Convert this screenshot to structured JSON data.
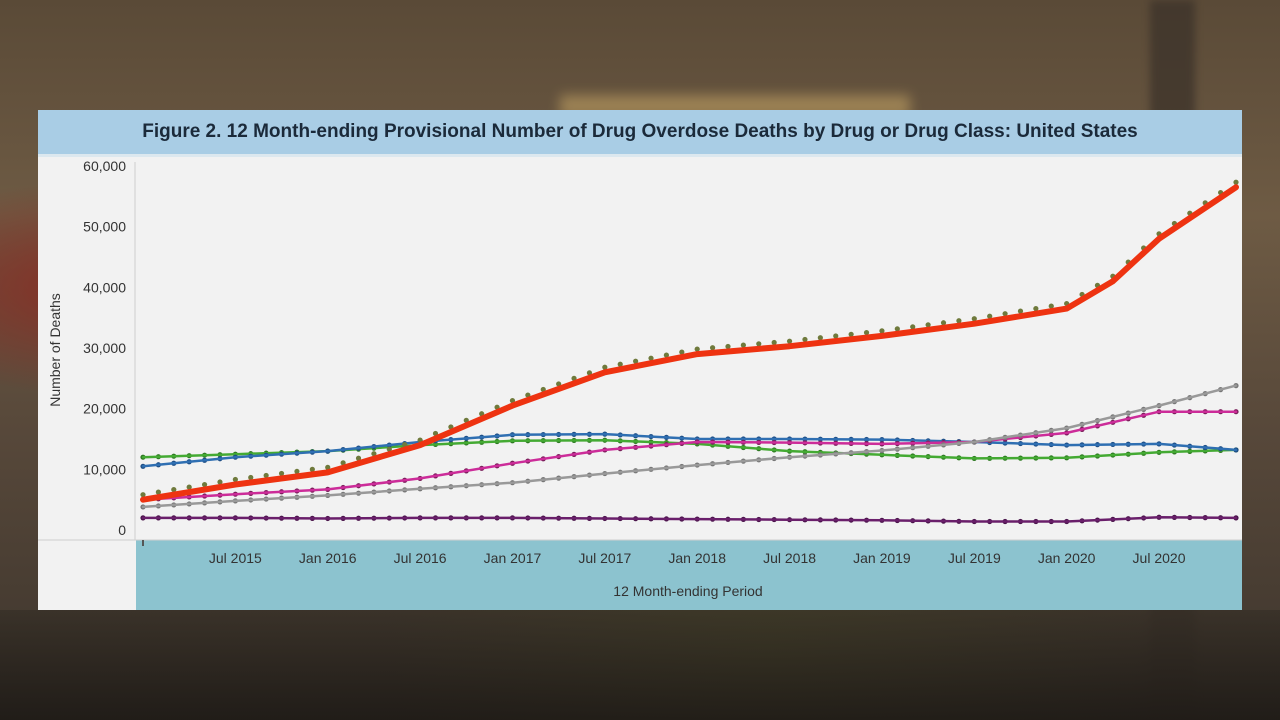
{
  "title": "Figure 2. 12 Month-ending Provisional Number of Drug Overdose Deaths by Drug or Drug Class: United States",
  "colors": {
    "title_bar": "#a9cde5",
    "plot_bg": "#f2f2f2",
    "xaxis_band": "#8cc3cf"
  },
  "chart_data": {
    "type": "line",
    "title": "Figure 2. 12 Month-ending Provisional Number of Drug Overdose Deaths by Drug or Drug Class: United States",
    "xlabel": "12 Month-ending Period",
    "ylabel": "Number of Deaths",
    "ylim": [
      0,
      60000
    ],
    "grid": false,
    "legend": "none",
    "x_start": "Jan 2015",
    "x_end": "Dec 2020",
    "x_tick_labels": [
      "Jul 2015",
      "Jan 2016",
      "Jul 2016",
      "Jan 2017",
      "Jul 2017",
      "Jan 2018",
      "Jul 2018",
      "Jan 2019",
      "Jul 2019",
      "Jan 2020",
      "Jul 2020"
    ],
    "y_tick_labels": [
      "0",
      "10,000",
      "20,000",
      "30,000",
      "40,000",
      "50,000",
      "60,000"
    ],
    "y_ticks": [
      0,
      10000,
      20000,
      30000,
      40000,
      50000,
      60000
    ],
    "series": [
      {
        "color": "#ee3311",
        "marker_color": "#6f7a3c",
        "line_width": 6,
        "points": [
          [
            "Jan 2015",
            5000
          ],
          [
            "Jul 2015",
            7500
          ],
          [
            "Jan 2016",
            9500
          ],
          [
            "Jul 2016",
            14000
          ],
          [
            "Jan 2017",
            20500
          ],
          [
            "Jul 2017",
            26000
          ],
          [
            "Jan 2018",
            29000
          ],
          [
            "Jul 2018",
            30300
          ],
          [
            "Jan 2019",
            32000
          ],
          [
            "Jul 2019",
            34000
          ],
          [
            "Jan 2020",
            36500
          ],
          [
            "Apr 2020",
            41000
          ],
          [
            "Jul 2020",
            48000
          ],
          [
            "Dec 2020",
            56500
          ]
        ]
      },
      {
        "color": "#999999",
        "marker_color": "#777777",
        "line_width": 2.5,
        "points": [
          [
            "Jan 2015",
            3800
          ],
          [
            "Jul 2015",
            4800
          ],
          [
            "Jan 2016",
            5700
          ],
          [
            "Jul 2016",
            6800
          ],
          [
            "Jan 2017",
            7800
          ],
          [
            "Jul 2017",
            9300
          ],
          [
            "Jan 2018",
            10700
          ],
          [
            "Jul 2018",
            12000
          ],
          [
            "Jan 2019",
            13100
          ],
          [
            "Jul 2019",
            14500
          ],
          [
            "Jan 2020",
            16800
          ],
          [
            "Jul 2020",
            20500
          ],
          [
            "Dec 2020",
            23800
          ]
        ]
      },
      {
        "color": "#cc2c99",
        "marker_color": "#7a1f5a",
        "line_width": 2.5,
        "points": [
          [
            "Jan 2015",
            5000
          ],
          [
            "Jul 2015",
            5900
          ],
          [
            "Jan 2016",
            6700
          ],
          [
            "Jul 2016",
            8500
          ],
          [
            "Jan 2017",
            11000
          ],
          [
            "Jul 2017",
            13200
          ],
          [
            "Jan 2018",
            14500
          ],
          [
            "Jul 2018",
            14400
          ],
          [
            "Jan 2019",
            14200
          ],
          [
            "Jul 2019",
            14500
          ],
          [
            "Jan 2020",
            16000
          ],
          [
            "Jul 2020",
            19500
          ],
          [
            "Dec 2020",
            19500
          ]
        ]
      },
      {
        "color": "#2f6fb2",
        "marker_color": "#1f4f86",
        "line_width": 2.5,
        "points": [
          [
            "Jan 2015",
            10500
          ],
          [
            "Jul 2015",
            12000
          ],
          [
            "Jan 2016",
            13000
          ],
          [
            "Jul 2016",
            14500
          ],
          [
            "Jan 2017",
            15700
          ],
          [
            "Jul 2017",
            15800
          ],
          [
            "Jan 2018",
            15000
          ],
          [
            "Jul 2018",
            15000
          ],
          [
            "Jan 2019",
            14900
          ],
          [
            "Jul 2019",
            14500
          ],
          [
            "Jan 2020",
            14000
          ],
          [
            "Jul 2020",
            14200
          ],
          [
            "Dec 2020",
            13200
          ]
        ]
      },
      {
        "color": "#44aa33",
        "marker_color": "#2f7a23",
        "line_width": 2.5,
        "points": [
          [
            "Jan 2015",
            12000
          ],
          [
            "Jul 2015",
            12500
          ],
          [
            "Jan 2016",
            13000
          ],
          [
            "Jul 2016",
            14000
          ],
          [
            "Jan 2017",
            14700
          ],
          [
            "Jul 2017",
            14800
          ],
          [
            "Jan 2018",
            14200
          ],
          [
            "Jul 2018",
            13000
          ],
          [
            "Jan 2019",
            12400
          ],
          [
            "Jul 2019",
            11800
          ],
          [
            "Jan 2020",
            11900
          ],
          [
            "Jul 2020",
            12800
          ],
          [
            "Dec 2020",
            13200
          ]
        ]
      },
      {
        "color": "#6a1f6b",
        "marker_color": "#4a154b",
        "line_width": 2.5,
        "points": [
          [
            "Jan 2015",
            2000
          ],
          [
            "Jul 2015",
            2000
          ],
          [
            "Jan 2016",
            1900
          ],
          [
            "Jul 2016",
            2000
          ],
          [
            "Jan 2017",
            2000
          ],
          [
            "Jul 2017",
            1900
          ],
          [
            "Jan 2018",
            1800
          ],
          [
            "Jul 2018",
            1700
          ],
          [
            "Jan 2019",
            1600
          ],
          [
            "Jul 2019",
            1400
          ],
          [
            "Jan 2020",
            1400
          ],
          [
            "Jul 2020",
            2100
          ],
          [
            "Dec 2020",
            2000
          ]
        ]
      }
    ]
  }
}
